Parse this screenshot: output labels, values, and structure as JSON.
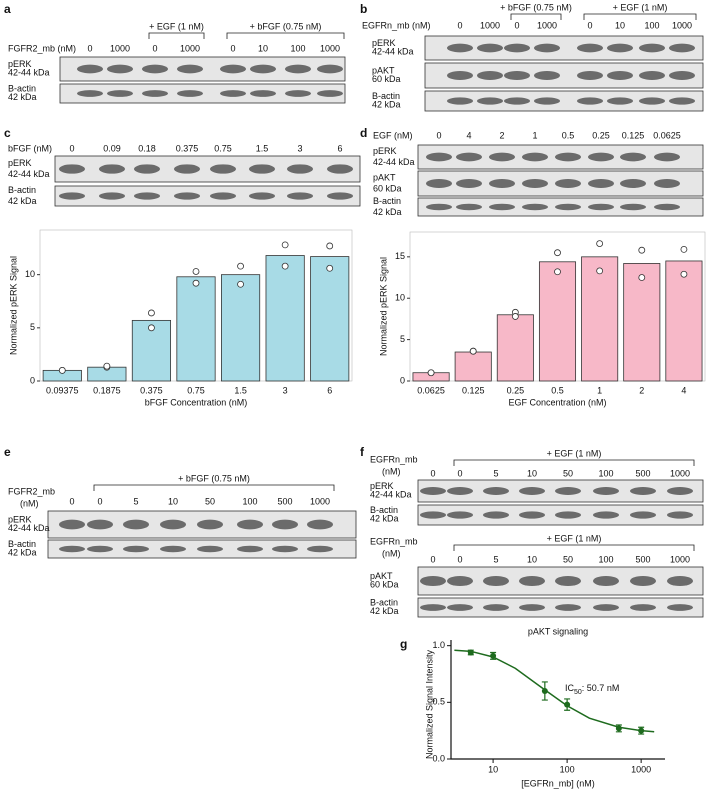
{
  "panels": [
    {
      "label": "a",
      "blots": [
        {
          "dose_title": [
            "FGFR2_mb (nM)"
          ],
          "lanes": [
            "0",
            "1000",
            "0",
            "1000",
            "0",
            "10",
            "100",
            "1000"
          ],
          "treatments": [
            "+ EGF (1 nM)",
            "+ bFGF (0.75 nM)"
          ],
          "rows": [
            {
              "name": "pERK",
              "size": "42-44 kDa"
            },
            {
              "name": "B-actin",
              "size": "42 kDa"
            }
          ]
        }
      ]
    },
    {
      "label": "b",
      "blots": [
        {
          "dose_title": [
            "EGFRn_mb (nM)"
          ],
          "lanes": [
            "0",
            "1000",
            "0",
            "1000",
            "0",
            "10",
            "100",
            "1000"
          ],
          "treatments": [
            "+ bFGF (0.75 nM)",
            "+ EGF (1 nM)"
          ],
          "rows": [
            {
              "name": "pERK",
              "size": "42-44 kDa"
            },
            {
              "name": "pAKT",
              "size": "60 kDa"
            },
            {
              "name": "B-actin",
              "size": "42 kDa"
            }
          ]
        }
      ]
    },
    {
      "label": "c",
      "blots": [
        {
          "dose_title": [
            "bFGF (nM)"
          ],
          "lanes": [
            "0",
            "0.09",
            "0.18",
            "0.375",
            "0.75",
            "1.5",
            "3",
            "6"
          ],
          "treatments": [],
          "rows": [
            {
              "name": "pERK",
              "size": "42-44 kDa"
            },
            {
              "name": "B-actin",
              "size": "42 kDa"
            }
          ]
        }
      ]
    },
    {
      "label": "d",
      "blots": [
        {
          "dose_title": [
            "EGF (nM)"
          ],
          "lanes": [
            "0",
            "4",
            "2",
            "1",
            "0.5",
            "0.25",
            "0.125",
            "0.0625"
          ],
          "treatments": [],
          "rows": [
            {
              "name": "pERK",
              "size": "42-44 kDa"
            },
            {
              "name": "pAKT",
              "size": "60 kDa"
            },
            {
              "name": "B-actin",
              "size": "42 kDa"
            }
          ]
        }
      ]
    },
    {
      "label": "e",
      "blots": [
        {
          "dose_title": [
            "FGFR2_mb",
            "(nM)"
          ],
          "lanes": [
            "0",
            "0",
            "5",
            "10",
            "50",
            "100",
            "500",
            "1000"
          ],
          "treatments": [
            "+ bFGF (0.75 nM)"
          ],
          "rows": [
            {
              "name": "pERK",
              "size": "42-44 kDa"
            },
            {
              "name": "B-actin",
              "size": "42 kDa"
            }
          ]
        }
      ]
    },
    {
      "label": "f",
      "blots": [
        {
          "dose_title": [
            "EGFRn_mb",
            "(nM)"
          ],
          "lanes": [
            "0",
            "0",
            "5",
            "10",
            "50",
            "100",
            "500",
            "1000"
          ],
          "treatments": [
            "+ EGF (1 nM)"
          ],
          "rows": [
            {
              "name": "pERK",
              "size": "42-44 kDa"
            },
            {
              "name": "B-actin",
              "size": "42 kDa"
            }
          ]
        },
        {
          "dose_title": [
            "EGFRn_mb",
            "(nM)"
          ],
          "lanes": [
            "0",
            "0",
            "5",
            "10",
            "50",
            "100",
            "500",
            "1000"
          ],
          "treatments": [
            "+ EGF (1 nM)"
          ],
          "rows": [
            {
              "name": "pAKT",
              "size": "60 kDa"
            },
            {
              "name": "B-actin",
              "size": "42 kDa"
            }
          ]
        }
      ]
    },
    {
      "label": "g"
    }
  ],
  "chart_data": [
    {
      "type": "bar",
      "x_label": "bFGF Concentration (nM)",
      "y_label": "Normalized pERK Signal",
      "categories": [
        "0.09375",
        "0.1875",
        "0.375",
        "0.75",
        "1.5",
        "3",
        "6"
      ],
      "values": [
        1.0,
        1.3,
        5.7,
        9.8,
        10.0,
        11.8,
        11.7
      ],
      "replicates": [
        [
          1.0,
          1.0
        ],
        [
          1.3,
          1.4
        ],
        [
          6.4,
          5.0
        ],
        [
          10.3,
          9.2
        ],
        [
          10.8,
          9.1
        ],
        [
          12.8,
          10.8
        ],
        [
          12.7,
          10.6
        ]
      ],
      "color": "#a8dbe6",
      "ylim": [
        0,
        14.2
      ],
      "yticks": [
        0,
        5,
        10
      ]
    },
    {
      "type": "bar",
      "x_label": "EGF Concentration (nM)",
      "y_label": "Normalized pERK Signal",
      "categories": [
        "0.0625",
        "0.125",
        "0.25",
        "0.5",
        "1",
        "2",
        "4"
      ],
      "values": [
        1.0,
        3.5,
        8.0,
        14.4,
        15.0,
        14.2,
        14.5
      ],
      "replicates": [
        [
          1.0,
          1.0
        ],
        [
          3.6,
          3.6
        ],
        [
          8.3,
          7.8
        ],
        [
          15.5,
          13.2
        ],
        [
          16.6,
          13.3
        ],
        [
          15.8,
          12.5
        ],
        [
          15.9,
          12.9
        ]
      ],
      "color": "#f7b8c8",
      "ylim": [
        0,
        18
      ],
      "yticks": [
        0,
        5,
        10,
        15
      ]
    },
    {
      "type": "line",
      "title": "pAKT signaling",
      "annotation": {
        "text": "IC",
        "sub": "50",
        "rest": ": 50.7 nM"
      },
      "x_label": "[EGFRn_mb] (nM)",
      "y_label": "Normalized Signal Intensity",
      "log_x": true,
      "color": "#1e6b1e",
      "x": [
        5,
        10,
        50,
        100,
        500,
        1000
      ],
      "series": [
        {
          "values": [
            0.94,
            0.91,
            0.6,
            0.48,
            0.27,
            0.25
          ],
          "errors": [
            0.02,
            0.03,
            0.08,
            0.05,
            0.03,
            0.03
          ]
        }
      ],
      "fit": {
        "x": [
          3,
          5,
          10,
          20,
          50,
          100,
          200,
          500,
          1000,
          1500
        ],
        "values": [
          0.96,
          0.95,
          0.9,
          0.8,
          0.61,
          0.47,
          0.36,
          0.28,
          0.25,
          0.24
        ]
      },
      "xlim": [
        2.7,
        2100
      ],
      "xticks": [
        10,
        100,
        1000
      ],
      "ylim": [
        0,
        1.05
      ],
      "yticks": [
        {
          "value": 0,
          "label": "0.0"
        },
        0.5,
        {
          "value": 1,
          "label": "1.0"
        }
      ]
    }
  ]
}
